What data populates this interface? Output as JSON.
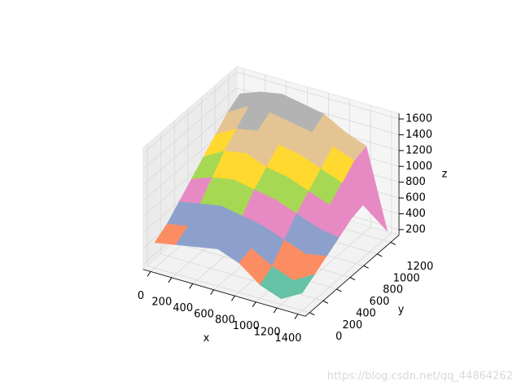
{
  "chart_data": {
    "type": "surface",
    "x": [
      0,
      200,
      400,
      600,
      800,
      1000,
      1200,
      1400
    ],
    "y": [
      0,
      180,
      360,
      540,
      720,
      900,
      1080,
      1260
    ],
    "z": [
      [
        450,
        500,
        550,
        600,
        500,
        300,
        200,
        350
      ],
      [
        550,
        600,
        650,
        600,
        550,
        400,
        300,
        450
      ],
      [
        700,
        750,
        800,
        750,
        700,
        600,
        500,
        550
      ],
      [
        850,
        950,
        1000,
        950,
        900,
        800,
        700,
        650
      ],
      [
        1000,
        1150,
        1200,
        1100,
        1050,
        950,
        850,
        750
      ],
      [
        1150,
        1300,
        1350,
        1250,
        1200,
        1100,
        1000,
        800
      ],
      [
        1300,
        1450,
        1450,
        1400,
        1350,
        1250,
        1150,
        500
      ],
      [
        1400,
        1500,
        1550,
        1500,
        1450,
        1300,
        1200,
        200
      ]
    ],
    "colormap": [
      "#66c2a5",
      "#fc8d62",
      "#8da0cb",
      "#e78ac3",
      "#a6d854",
      "#ffd92f",
      "#e5c494",
      "#b3b3b3"
    ],
    "xlabel": "x",
    "ylabel": "y",
    "zlabel": "z",
    "xlim": [
      -70,
      1470
    ],
    "ylim": [
      -63,
      1323
    ],
    "zlim": [
      130,
      1670
    ],
    "xticks": [
      0,
      200,
      400,
      600,
      800,
      1000,
      1200,
      1400
    ],
    "yticks": [
      0,
      200,
      400,
      600,
      800,
      1000,
      1200
    ],
    "zticks": [
      200,
      400,
      600,
      800,
      1000,
      1200,
      1400,
      1600
    ],
    "grid": true
  },
  "watermark": "https://blog.csdn.net/qq_44864262"
}
